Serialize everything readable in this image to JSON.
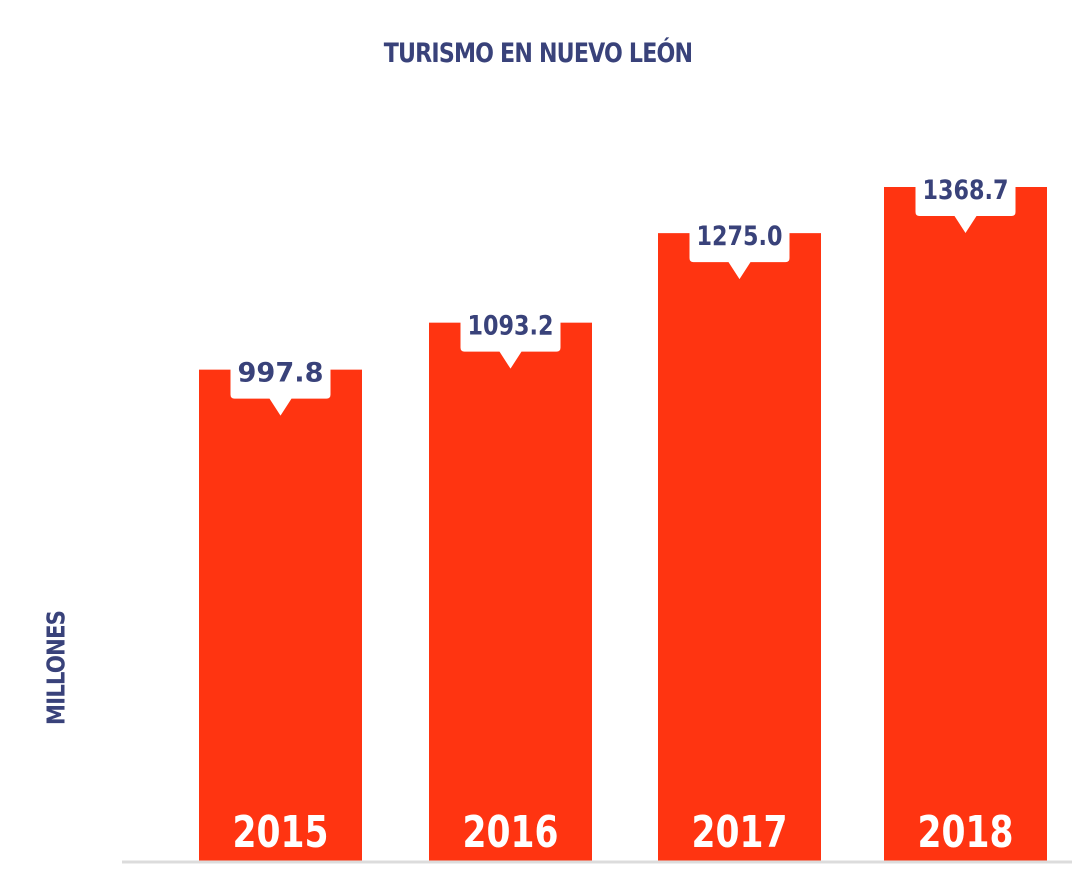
{
  "chart_data": {
    "type": "bar",
    "title": "TURISMO EN NUEVO LEÓN",
    "ylabel": "MILLONES",
    "xlabel": "",
    "categories": [
      "2015",
      "2016",
      "2017",
      "2018"
    ],
    "values": [
      997.8,
      1093.2,
      1275.0,
      1368.7
    ],
    "value_labels": [
      "997.8",
      "1093.2",
      "1275.0",
      "1368.7"
    ],
    "grid": false,
    "legend": "none",
    "colors": {
      "bar": "#ff3411",
      "text": "#39427a",
      "category_text": "#ffffff",
      "baseline": "#dcdcdc"
    }
  }
}
